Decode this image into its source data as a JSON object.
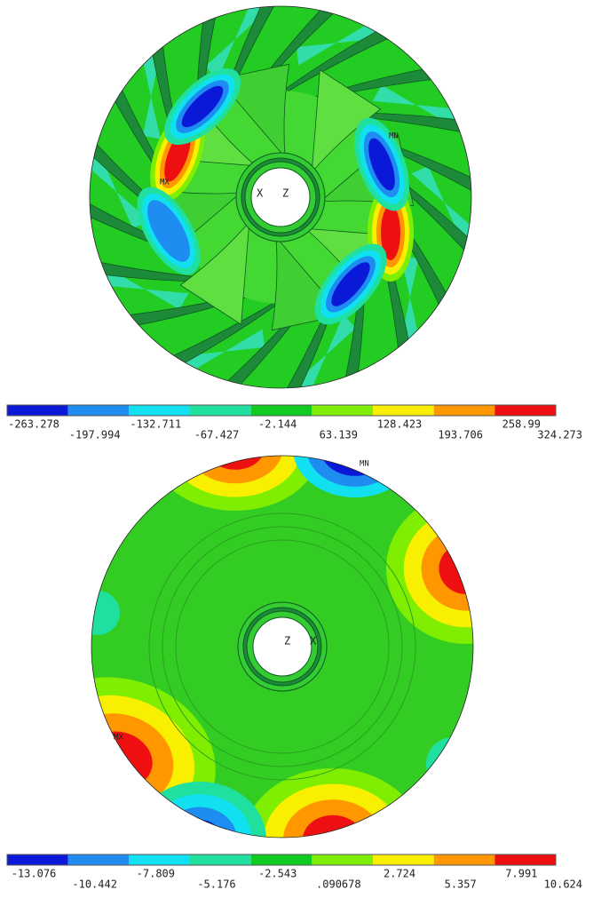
{
  "plots": [
    {
      "legend": {
        "labels": [
          "-263.278",
          "-197.994",
          "-132.711",
          "-67.427",
          "-2.144",
          "63.139",
          "128.423",
          "193.706",
          "258.99",
          "324.273"
        ],
        "colors": [
          "#0a18d8",
          "#1e8cf0",
          "#10e0f0",
          "#20e0a0",
          "#10cc20",
          "#80ee00",
          "#f8f000",
          "#ff9800",
          "#ee1010"
        ]
      },
      "markers": {
        "max": "MX",
        "min": "MN"
      },
      "triad": [
        "X",
        "Z"
      ]
    },
    {
      "legend": {
        "labels": [
          "-13.076",
          "-10.442",
          "-7.809",
          "-5.176",
          "-2.543",
          ".090678",
          "2.724",
          "5.357",
          "7.991",
          "10.624"
        ],
        "colors": [
          "#0a18d8",
          "#1e8cf0",
          "#10e0f0",
          "#20e0a0",
          "#10cc20",
          "#80ee00",
          "#f8f000",
          "#ff9800",
          "#ee1010"
        ]
      },
      "markers": {
        "max": "MX",
        "min": "MN"
      },
      "triad": [
        "Z",
        "X"
      ]
    }
  ]
}
